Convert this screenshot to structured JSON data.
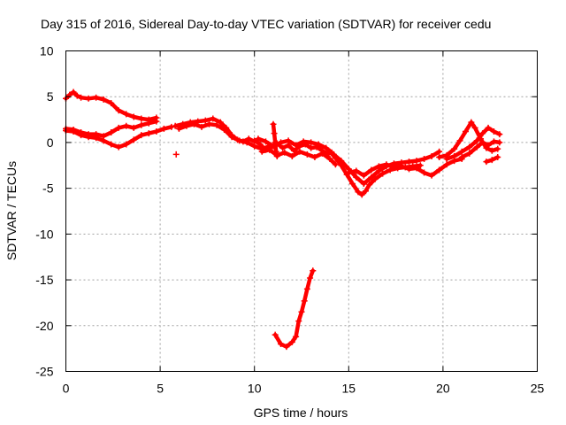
{
  "chart_data": {
    "type": "scatter",
    "title": "Day 315 of 2016, Sidereal Day-to-day VTEC variation (SDTVAR) for receiver cedu",
    "xlabel": "GPS time / hours",
    "ylabel": "SDTVAR / TECUs",
    "xlim": [
      0,
      25
    ],
    "ylim": [
      -25,
      10
    ],
    "xticks": [
      0,
      5,
      10,
      15,
      20,
      25
    ],
    "yticks": [
      -25,
      -20,
      -15,
      -10,
      -5,
      0,
      5,
      10
    ],
    "grid": true,
    "legend": "none",
    "series": [
      {
        "name": "upper arc",
        "color": "#ff0000",
        "points": [
          [
            0,
            4.8
          ],
          [
            0.2,
            5.2
          ],
          [
            0.4,
            5.5
          ],
          [
            0.6,
            5.1
          ],
          [
            0.8,
            4.9
          ],
          [
            1.2,
            4.8
          ],
          [
            1.6,
            4.9
          ],
          [
            2.0,
            4.7
          ],
          [
            2.4,
            4.3
          ],
          [
            2.8,
            3.5
          ],
          [
            3.2,
            3.1
          ],
          [
            3.6,
            2.8
          ],
          [
            4.0,
            2.6
          ],
          [
            4.4,
            2.5
          ],
          [
            4.8,
            2.7
          ]
        ]
      },
      {
        "name": "low arc early",
        "color": "#ff0000",
        "points": [
          [
            0,
            1.3
          ],
          [
            0.4,
            1.2
          ],
          [
            0.8,
            0.8
          ],
          [
            1.2,
            0.6
          ],
          [
            1.6,
            0.5
          ],
          [
            2.0,
            0.2
          ],
          [
            2.4,
            -0.2
          ],
          [
            2.8,
            -0.5
          ],
          [
            3.2,
            -0.2
          ],
          [
            3.6,
            0.3
          ],
          [
            4.0,
            0.8
          ],
          [
            4.4,
            1.0
          ],
          [
            4.8,
            1.2
          ],
          [
            5.2,
            1.5
          ],
          [
            5.6,
            1.7
          ]
        ]
      },
      {
        "name": "mid arc early",
        "color": "#ff0000",
        "points": [
          [
            0,
            1.5
          ],
          [
            0.4,
            1.4
          ],
          [
            0.8,
            1.1
          ],
          [
            1.2,
            0.9
          ],
          [
            1.6,
            0.9
          ],
          [
            2.0,
            0.7
          ],
          [
            2.4,
            1.1
          ],
          [
            2.8,
            1.6
          ],
          [
            3.2,
            1.8
          ],
          [
            3.6,
            1.6
          ],
          [
            4.0,
            1.9
          ],
          [
            4.4,
            2.1
          ],
          [
            4.8,
            2.3
          ]
        ]
      },
      {
        "name": "mid arc 2",
        "color": "#ff0000",
        "points": [
          [
            5.8,
            1.8
          ],
          [
            6.2,
            2.0
          ],
          [
            6.6,
            2.2
          ],
          [
            7.0,
            2.3
          ],
          [
            7.4,
            2.4
          ],
          [
            7.8,
            2.6
          ],
          [
            8.2,
            2.2
          ],
          [
            8.5,
            1.6
          ],
          [
            8.8,
            0.8
          ],
          [
            9.1,
            0.3
          ],
          [
            9.4,
            0.1
          ],
          [
            9.7,
            0.4
          ],
          [
            10.0,
            0.1
          ]
        ]
      },
      {
        "name": "mid arc 3",
        "color": "#ff0000",
        "points": [
          [
            6.0,
            1.5
          ],
          [
            6.4,
            1.8
          ],
          [
            6.8,
            2.0
          ],
          [
            7.2,
            1.7
          ],
          [
            7.6,
            2.0
          ],
          [
            8.0,
            1.9
          ],
          [
            8.4,
            1.4
          ],
          [
            8.8,
            0.6
          ],
          [
            9.2,
            0.2
          ],
          [
            9.6,
            0.0
          ],
          [
            10.0,
            -0.4
          ],
          [
            10.4,
            -0.7
          ],
          [
            10.8,
            -0.4
          ]
        ]
      },
      {
        "name": "midday cluster A",
        "color": "#ff0000",
        "points": [
          [
            10.0,
            0.2
          ],
          [
            10.3,
            -0.2
          ],
          [
            10.6,
            -0.8
          ],
          [
            10.9,
            -0.5
          ],
          [
            11.2,
            -0.1
          ],
          [
            11.5,
            -0.6
          ],
          [
            11.8,
            -0.3
          ],
          [
            12.1,
            -0.9
          ],
          [
            12.4,
            -0.4
          ],
          [
            12.7,
            -0.2
          ],
          [
            13.0,
            -0.6
          ],
          [
            13.3,
            -0.5
          ],
          [
            13.6,
            -0.9
          ],
          [
            13.9,
            -1.3
          ]
        ]
      },
      {
        "name": "midday cluster B",
        "color": "#ff0000",
        "points": [
          [
            10.2,
            0.4
          ],
          [
            10.6,
            0.1
          ],
          [
            11.0,
            -0.4
          ],
          [
            11.4,
            0.0
          ],
          [
            11.8,
            0.2
          ],
          [
            12.2,
            -0.3
          ],
          [
            12.6,
            0.1
          ],
          [
            13.0,
            0.0
          ],
          [
            13.4,
            -0.2
          ],
          [
            13.8,
            -0.6
          ],
          [
            14.1,
            -1.1
          ]
        ]
      },
      {
        "name": "midday cluster C",
        "color": "#ff0000",
        "points": [
          [
            10.4,
            -1.0
          ],
          [
            10.8,
            -0.8
          ],
          [
            11.2,
            -1.4
          ],
          [
            11.6,
            -1.1
          ],
          [
            12.0,
            -1.5
          ],
          [
            12.4,
            -1.0
          ],
          [
            12.8,
            -1.3
          ],
          [
            13.2,
            -1.6
          ],
          [
            13.6,
            -1.2
          ],
          [
            14.0,
            -1.8
          ],
          [
            14.3,
            -2.4
          ]
        ]
      },
      {
        "name": "spike near 11",
        "color": "#ff0000",
        "points": [
          [
            11.0,
            2.0
          ],
          [
            11.05,
            1.0
          ],
          [
            11.1,
            0.0
          ],
          [
            11.15,
            -1.0
          ],
          [
            11.2,
            -1.5
          ]
        ]
      },
      {
        "name": "dip arc A",
        "color": "#ff0000",
        "points": [
          [
            14.0,
            -1.0
          ],
          [
            14.3,
            -1.7
          ],
          [
            14.6,
            -2.5
          ],
          [
            14.9,
            -3.5
          ],
          [
            15.2,
            -4.5
          ],
          [
            15.5,
            -5.4
          ],
          [
            15.7,
            -5.7
          ],
          [
            15.9,
            -5.3
          ],
          [
            16.1,
            -4.6
          ],
          [
            16.4,
            -4.0
          ],
          [
            16.8,
            -3.4
          ],
          [
            17.2,
            -3.0
          ],
          [
            17.6,
            -2.8
          ],
          [
            18.0,
            -2.7
          ],
          [
            18.4,
            -2.6
          ],
          [
            18.8,
            -2.5
          ]
        ]
      },
      {
        "name": "dip arc B",
        "color": "#ff0000",
        "points": [
          [
            14.2,
            -1.3
          ],
          [
            14.6,
            -2.0
          ],
          [
            15.0,
            -2.9
          ],
          [
            15.4,
            -3.8
          ],
          [
            15.8,
            -4.5
          ],
          [
            16.2,
            -3.8
          ],
          [
            16.6,
            -3.1
          ],
          [
            17.0,
            -2.6
          ],
          [
            17.4,
            -2.3
          ],
          [
            17.8,
            -2.2
          ],
          [
            18.2,
            -2.1
          ],
          [
            18.6,
            -2.0
          ],
          [
            19.0,
            -1.8
          ],
          [
            19.4,
            -1.5
          ],
          [
            19.8,
            -1.0
          ]
        ]
      },
      {
        "name": "dip arc C",
        "color": "#ff0000",
        "points": [
          [
            15.0,
            -3.3
          ],
          [
            15.4,
            -3.1
          ],
          [
            15.8,
            -3.6
          ],
          [
            16.2,
            -3.0
          ],
          [
            16.6,
            -2.6
          ],
          [
            17.0,
            -2.4
          ],
          [
            17.4,
            -2.7
          ],
          [
            17.8,
            -2.6
          ],
          [
            18.2,
            -2.9
          ],
          [
            18.6,
            -2.8
          ],
          [
            19.0,
            -3.3
          ],
          [
            19.4,
            -3.6
          ],
          [
            19.8,
            -3.0
          ],
          [
            20.2,
            -2.4
          ],
          [
            20.6,
            -2.0
          ],
          [
            21.0,
            -1.8
          ]
        ]
      },
      {
        "name": "late rise A",
        "color": "#ff0000",
        "points": [
          [
            19.8,
            -1.6
          ],
          [
            20.2,
            -1.4
          ],
          [
            20.6,
            -0.7
          ],
          [
            20.9,
            0.2
          ],
          [
            21.2,
            1.2
          ],
          [
            21.5,
            2.2
          ],
          [
            21.7,
            1.6
          ],
          [
            22.0,
            0.4
          ],
          [
            22.3,
            -0.6
          ],
          [
            22.6,
            -0.9
          ],
          [
            22.9,
            -0.7
          ]
        ]
      },
      {
        "name": "late rise B",
        "color": "#ff0000",
        "points": [
          [
            20.2,
            -1.8
          ],
          [
            20.6,
            -1.5
          ],
          [
            21.0,
            -1.0
          ],
          [
            21.4,
            -0.5
          ],
          [
            21.8,
            0.2
          ],
          [
            22.1,
            1.0
          ],
          [
            22.4,
            1.6
          ],
          [
            22.7,
            1.2
          ],
          [
            23.0,
            0.9
          ]
        ]
      },
      {
        "name": "late rise C",
        "color": "#ff0000",
        "points": [
          [
            21.0,
            -1.6
          ],
          [
            21.4,
            -1.2
          ],
          [
            21.8,
            -0.5
          ],
          [
            22.1,
            0.0
          ],
          [
            22.4,
            -0.3
          ],
          [
            22.7,
            0.1
          ],
          [
            23.0,
            0.0
          ]
        ]
      },
      {
        "name": "tail end",
        "color": "#ff0000",
        "points": [
          [
            22.3,
            -2.1
          ],
          [
            22.6,
            -1.9
          ],
          [
            22.9,
            -1.6
          ]
        ]
      },
      {
        "name": "anomalous dip",
        "color": "#ff0000",
        "points": [
          [
            11.1,
            -21.0
          ],
          [
            11.4,
            -22.0
          ],
          [
            11.7,
            -22.3
          ],
          [
            12.0,
            -21.8
          ],
          [
            12.2,
            -21.2
          ],
          [
            12.35,
            -19.5
          ],
          [
            12.5,
            -18.5
          ],
          [
            12.65,
            -17.3
          ],
          [
            12.8,
            -16.0
          ],
          [
            12.95,
            -14.8
          ],
          [
            13.1,
            -14.0
          ]
        ]
      },
      {
        "name": "isolated point",
        "color": "#ff0000",
        "points": [
          [
            5.85,
            -1.3
          ]
        ]
      }
    ]
  }
}
